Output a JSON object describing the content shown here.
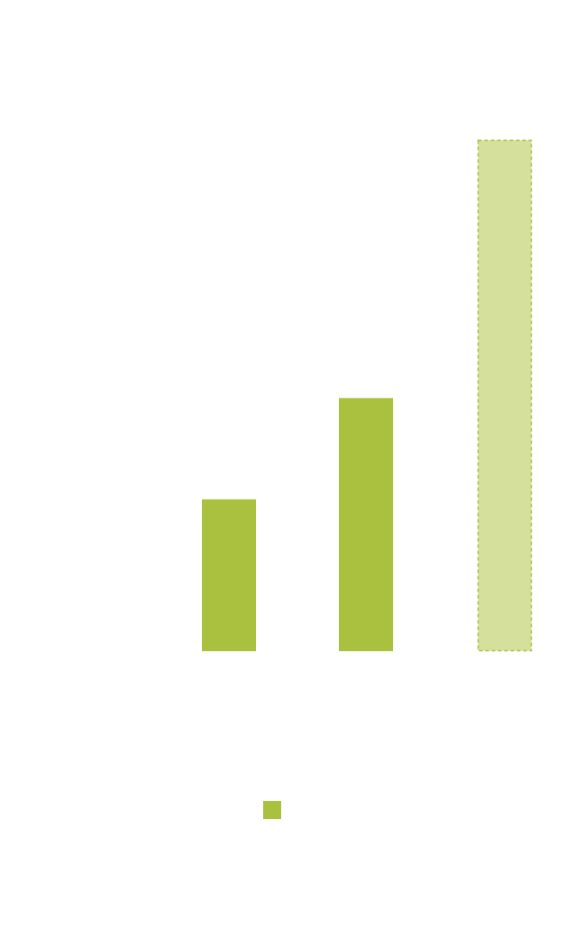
{
  "chart_data": {
    "type": "bar",
    "title": "",
    "xlabel": "",
    "ylabel": "",
    "categories": [
      "",
      "",
      ""
    ],
    "values": [
      30,
      50,
      101
    ],
    "projected": [
      false,
      false,
      true
    ],
    "ylim": [
      0,
      101
    ],
    "grid": false,
    "legend": "bottom-center",
    "series": [
      {
        "values": [
          30,
          50,
          101
        ]
      }
    ],
    "colors": {
      "bar": "#aac140",
      "projected_fill": "#d4e09c",
      "projected_stroke": "#aac140"
    }
  }
}
